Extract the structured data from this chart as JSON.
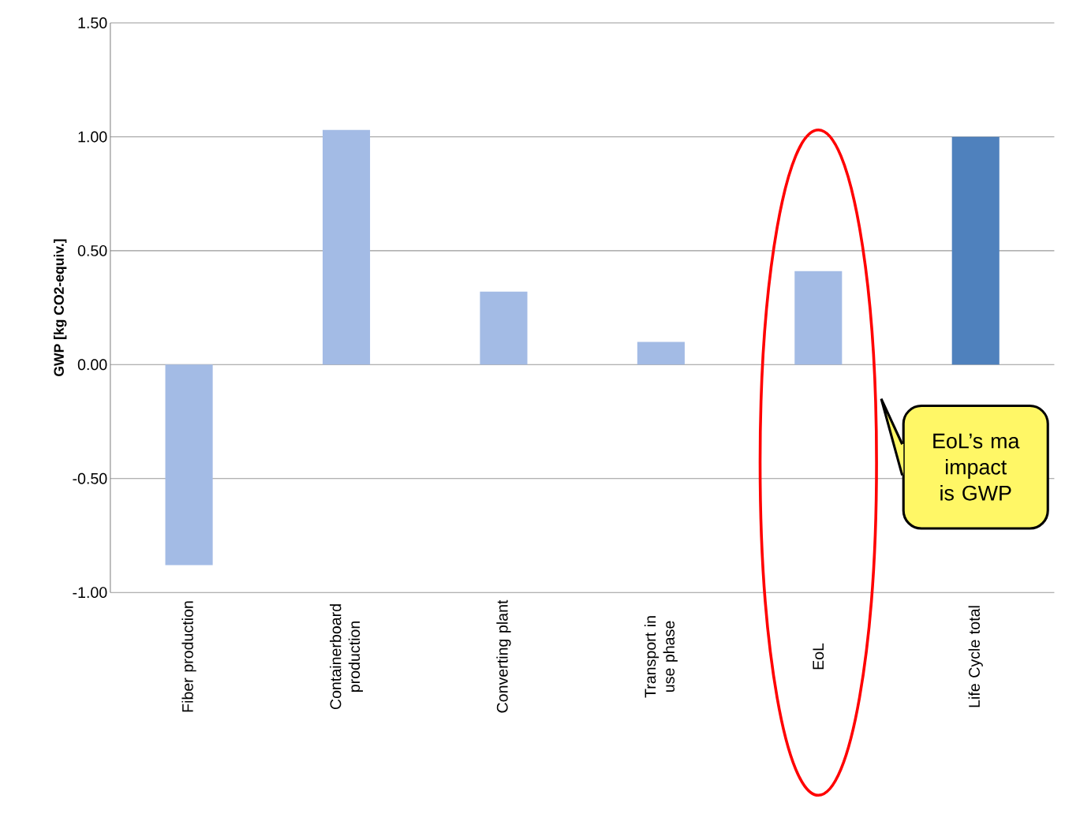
{
  "chart_data": {
    "type": "bar",
    "ylabel": "GWP [kg CO2-equiv.]",
    "categories": [
      "Fiber production",
      "Containerboard production",
      "Converting plant",
      "Transport in use phase",
      "EoL",
      "Life Cycle total"
    ],
    "values": [
      -0.88,
      1.03,
      0.32,
      0.1,
      0.41,
      1.0
    ],
    "colors": [
      "#a3bbe5",
      "#a3bbe5",
      "#a3bbe5",
      "#a3bbe5",
      "#a3bbe5",
      "#4f81bd"
    ],
    "ylim": [
      -1.0,
      1.5
    ],
    "yticks": [
      {
        "value": -1.0,
        "label": "-1.00"
      },
      {
        "value": -0.5,
        "label": "-0.50"
      },
      {
        "value": 0,
        "label": "0.00"
      },
      {
        "value": 0.5,
        "label": "0.50"
      },
      {
        "value": 1.0,
        "label": "1.00"
      },
      {
        "value": 1.5,
        "label": "1.50"
      }
    ],
    "grid": "y",
    "annotations": [
      "EoL’s ma impact is GWP"
    ]
  }
}
